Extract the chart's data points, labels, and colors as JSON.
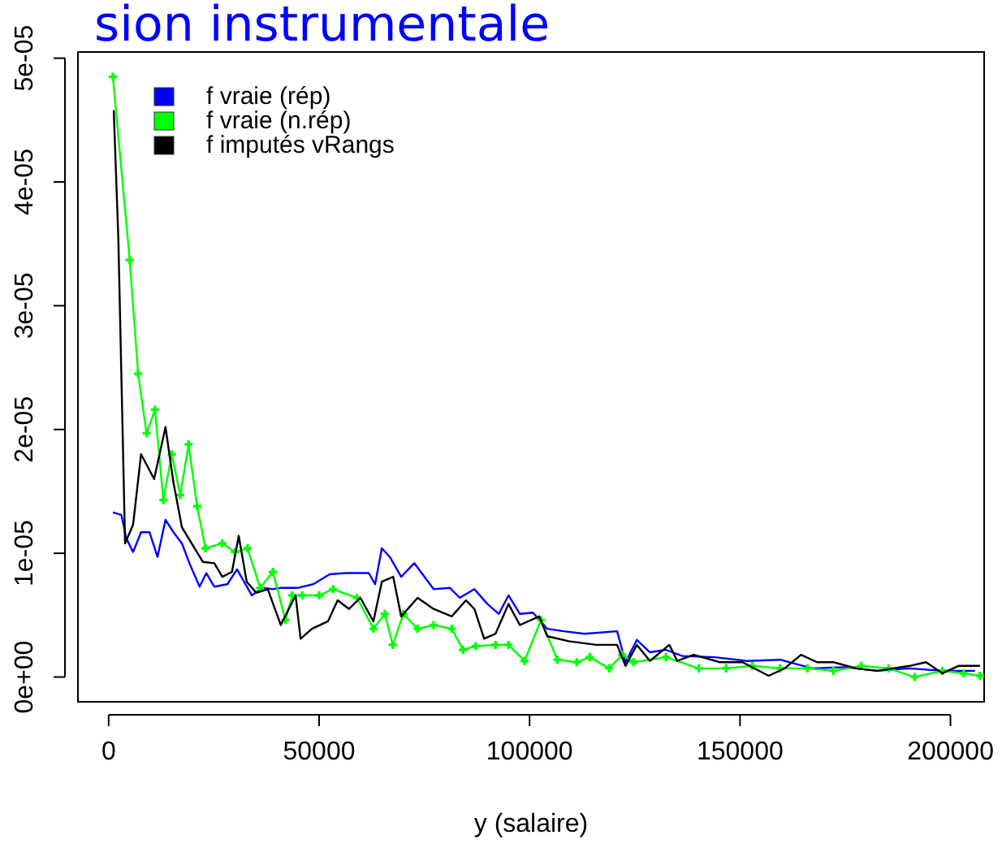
{
  "chart_data": {
    "type": "line",
    "title": "sion instrumentale",
    "xlabel": "y (salaire)",
    "xlim": [
      -7300,
      208000
    ],
    "xticks": [
      0,
      50000,
      100000,
      150000,
      200000
    ],
    "ylim": [
      -2e-06,
      5.05e-05
    ],
    "yticks": [
      {
        "value": 0,
        "label": "0e+00"
      },
      {
        "value": 1e-05,
        "label": "1e-05"
      },
      {
        "value": 2e-05,
        "label": "2e-05"
      },
      {
        "value": 3e-05,
        "label": "3e-05"
      },
      {
        "value": 4e-05,
        "label": "4e-05"
      },
      {
        "value": 5e-05,
        "label": "5e-05"
      }
    ],
    "legend": "top left",
    "grid": false,
    "line_style": "solid",
    "series": [
      {
        "name": "f vraie (rép)",
        "color": "#0000ff",
        "marker": "none",
        "x": [
          1000,
          3000,
          4200,
          5800,
          7700,
          9700,
          11600,
          13500,
          15400,
          17400,
          19300,
          21600,
          23200,
          25100,
          28200,
          30500,
          34000,
          36700,
          39000,
          40900,
          44800,
          48600,
          52500,
          56400,
          61800,
          63300,
          64900,
          66800,
          69500,
          72600,
          77200,
          81100,
          83400,
          86900,
          90000,
          92700,
          95000,
          97700,
          100800,
          104200,
          108100,
          113100,
          120800,
          122800,
          125500,
          128600,
          132400,
          136300,
          144000,
          151700,
          159500,
          167200,
          174900,
          182600,
          190300,
          198100,
          205800
        ],
        "values": [
          1.33e-05,
          1.31e-05,
          1.12e-05,
          1.01e-05,
          1.17e-05,
          1.17e-05,
          9.7e-06,
          1.27e-05,
          1.17e-05,
          1.08e-05,
          9.1e-06,
          7.3e-06,
          8.4e-06,
          7.3e-06,
          7.5e-06,
          8.7e-06,
          6.6e-06,
          7.2e-06,
          7.1e-06,
          7.2e-06,
          7.2e-06,
          7.5e-06,
          8.3e-06,
          8.4e-06,
          8.4e-06,
          7.5e-06,
          1.04e-05,
          9.7e-06,
          8.1e-06,
          9.2e-06,
          7.1e-06,
          7.2e-06,
          6.4e-06,
          7.1e-06,
          5.9e-06,
          5.1e-06,
          6.6e-06,
          5.1e-06,
          5.2e-06,
          3.9e-06,
          3.7e-06,
          3.5e-06,
          3.7e-06,
          1.2e-06,
          3e-06,
          2e-06,
          2.2e-06,
          1.7e-06,
          1.6e-06,
          1.3e-06,
          1.4e-06,
          7e-07,
          8e-07,
          5e-07,
          7e-07,
          5e-07,
          5e-07
        ]
      },
      {
        "name": "f vraie (n.rép)",
        "color": "#00ff00",
        "marker": "cross",
        "x": [
          1000,
          5000,
          7000,
          9000,
          11000,
          13000,
          15000,
          17000,
          19000,
          21000,
          23000,
          27000,
          30000,
          33000,
          36000,
          39000,
          42000,
          43600,
          46000,
          50000,
          53300,
          59000,
          62900,
          65600,
          67500,
          70000,
          73400,
          77200,
          81500,
          84200,
          87200,
          91900,
          95000,
          98800,
          102700,
          106600,
          111200,
          114300,
          118900,
          122000,
          124700,
          132400,
          140200,
          146700,
          152900,
          159500,
          166000,
          172200,
          178800,
          185300,
          191500,
          198100,
          203100,
          207000
        ],
        "values": [
          4.85e-05,
          3.37e-05,
          2.45e-05,
          1.97e-05,
          2.16e-05,
          1.43e-05,
          1.8e-05,
          1.47e-05,
          1.88e-05,
          1.38e-05,
          1.04e-05,
          1.08e-05,
          1.01e-05,
          1.04e-05,
          7.2e-06,
          8.5e-06,
          4.6e-06,
          6.6e-06,
          6.6e-06,
          6.6e-06,
          7.1e-06,
          6.4e-06,
          3.9e-06,
          5.1e-06,
          2.6e-06,
          5.1e-06,
          3.9e-06,
          4.2e-06,
          3.9e-06,
          2.2e-06,
          2.5e-06,
          2.6e-06,
          2.6e-06,
          1.3e-06,
          4.6e-06,
          1.4e-06,
          1.2e-06,
          1.6e-06,
          7e-07,
          1.8e-06,
          1.2e-06,
          1.6e-06,
          7e-07,
          7e-07,
          9e-07,
          7e-07,
          7e-07,
          5e-07,
          9e-07,
          7e-07,
          0,
          5e-07,
          3e-07,
          1e-07
        ]
      },
      {
        "name": "f imputés vRangs",
        "color": "#000000",
        "marker": "none",
        "x": [
          1200,
          2300,
          3900,
          5800,
          7700,
          10800,
          13500,
          15400,
          17400,
          19700,
          22400,
          25100,
          27000,
          29300,
          30900,
          32800,
          35100,
          37800,
          40900,
          44400,
          45600,
          48300,
          52100,
          54400,
          57100,
          59800,
          62900,
          64900,
          67600,
          69500,
          73400,
          77200,
          81500,
          84900,
          86900,
          89200,
          91900,
          95000,
          97700,
          102300,
          104200,
          109300,
          115800,
          120800,
          122800,
          125500,
          128600,
          133200,
          135100,
          139000,
          145200,
          150600,
          156800,
          160600,
          164500,
          168300,
          172200,
          177600,
          182600,
          190300,
          194200,
          198100,
          201900,
          207000
        ],
        "values": [
          4.58e-05,
          3.54e-05,
          1.08e-05,
          1.23e-05,
          1.8e-05,
          1.6e-05,
          2.02e-05,
          1.57e-05,
          1.21e-05,
          1.08e-05,
          9.3e-06,
          9.2e-06,
          8.1e-06,
          8.5e-06,
          1.14e-05,
          7.7e-06,
          6.8e-06,
          7.1e-06,
          4.2e-06,
          6.6e-06,
          3.1e-06,
          3.9e-06,
          4.5e-06,
          6.2e-06,
          5.5e-06,
          6.4e-06,
          4.5e-06,
          7.7e-06,
          8.1e-06,
          4.9e-06,
          6.4e-06,
          5.5e-06,
          4.9e-06,
          6.2e-06,
          5.5e-06,
          3.1e-06,
          3.5e-06,
          5.9e-06,
          4.2e-06,
          4.9e-06,
          3.3e-06,
          2.9e-06,
          2.6e-06,
          2.6e-06,
          9e-07,
          2.6e-06,
          1.3e-06,
          2.6e-06,
          1.3e-06,
          1.8e-06,
          1.2e-06,
          1.2e-06,
          1e-07,
          7e-07,
          1.8e-06,
          1.2e-06,
          1.2e-06,
          7e-07,
          5e-07,
          9e-07,
          1.2e-06,
          3e-07,
          9e-07,
          9e-07
        ]
      }
    ]
  }
}
